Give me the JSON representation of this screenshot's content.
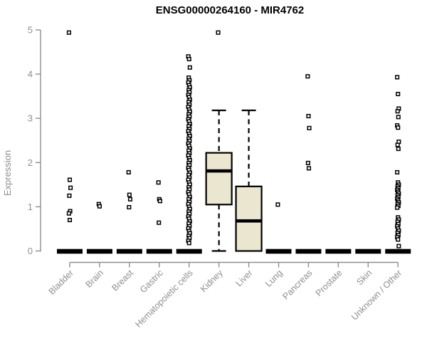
{
  "chart_data": {
    "type": "boxplot",
    "title": "ENSG00000264160 - MIR4762",
    "ylabel": "Expression",
    "xlabel": "",
    "ylim": [
      0,
      5
    ],
    "yticks": [
      0,
      1,
      2,
      3,
      4,
      5
    ],
    "grid": false,
    "legend": null,
    "colors": {
      "box_fill": "#ebe6cf",
      "line": "#000000",
      "axis": "#8e8e8e",
      "background": "#ffffff"
    },
    "categories": [
      "Bladder",
      "Brain",
      "Breast",
      "Gastric",
      "Hematopoietic cells",
      "Kidney",
      "Liver",
      "Lung",
      "Pancreas",
      "Prostate",
      "Skin",
      "Unknown / Other"
    ],
    "series": [
      {
        "name": "Bladder",
        "stats": [
          0,
          0,
          0,
          0,
          0
        ],
        "outliers": [
          4.94,
          1.61,
          1.43,
          1.25,
          0.9,
          0.85,
          0.7
        ]
      },
      {
        "name": "Brain",
        "stats": [
          0,
          0,
          0,
          0,
          0
        ],
        "outliers": [
          1.06,
          1.01
        ]
      },
      {
        "name": "Breast",
        "stats": [
          0,
          0,
          0,
          0,
          0
        ],
        "outliers": [
          1.78,
          1.27,
          1.17,
          0.99
        ]
      },
      {
        "name": "Gastric",
        "stats": [
          0,
          0,
          0,
          0,
          0
        ],
        "outliers": [
          1.55,
          1.17,
          1.13,
          0.64
        ]
      },
      {
        "name": "Hematopoietic cells",
        "stats": [
          0,
          0,
          0,
          0,
          0
        ],
        "outliers": [
          4.4,
          4.34,
          4.15,
          3.92,
          3.86,
          3.81,
          3.75,
          3.7,
          3.64,
          3.59,
          3.53,
          3.48,
          3.42,
          3.37,
          3.31,
          3.26,
          3.2,
          3.15,
          3.09,
          3.04,
          2.98,
          2.93,
          2.87,
          2.82,
          2.76,
          2.71,
          2.65,
          2.6,
          2.54,
          2.49,
          2.43,
          2.38,
          2.32,
          2.27,
          2.21,
          2.16,
          2.1,
          2.05,
          1.99,
          1.94,
          1.88,
          1.83,
          1.77,
          1.72,
          1.66,
          1.61,
          1.55,
          1.5,
          1.44,
          1.39,
          1.33,
          1.28,
          1.22,
          1.17,
          1.11,
          1.06,
          1.0,
          0.95,
          0.89,
          0.84,
          0.78,
          0.73,
          0.67,
          0.62,
          0.56,
          0.51,
          0.45,
          0.4,
          0.34,
          0.29,
          0.23,
          0.18
        ]
      },
      {
        "name": "Kidney",
        "stats": [
          0,
          1.05,
          1.81,
          2.22,
          3.18
        ],
        "outliers": [
          4.94
        ]
      },
      {
        "name": "Liver",
        "stats": [
          0,
          0,
          0.68,
          1.46,
          3.18
        ],
        "outliers": []
      },
      {
        "name": "Lung",
        "stats": [
          0,
          0,
          0,
          0,
          0
        ],
        "outliers": [
          1.05
        ]
      },
      {
        "name": "Pancreas",
        "stats": [
          0,
          0,
          0,
          0,
          0
        ],
        "outliers": [
          3.95,
          3.05,
          2.78,
          1.99,
          1.87
        ]
      },
      {
        "name": "Prostate",
        "stats": [
          0,
          0,
          0,
          0,
          0
        ],
        "outliers": []
      },
      {
        "name": "Skin",
        "stats": [
          0,
          0,
          0,
          0,
          0
        ],
        "outliers": []
      },
      {
        "name": "Unknown / Other",
        "stats": [
          0,
          0,
          0,
          0,
          0
        ],
        "outliers": [
          3.93,
          3.55,
          3.22,
          3.16,
          3.03,
          2.84,
          2.79,
          2.47,
          2.4,
          2.31,
          1.78,
          1.55,
          1.5,
          1.46,
          1.42,
          1.38,
          1.34,
          1.3,
          1.26,
          1.22,
          1.18,
          1.14,
          1.1,
          1.06,
          1.02,
          0.98,
          0.76,
          0.71,
          0.66,
          0.61,
          0.56,
          0.51,
          0.46,
          0.41,
          0.36,
          0.31,
          0.26,
          0.11
        ]
      }
    ]
  }
}
